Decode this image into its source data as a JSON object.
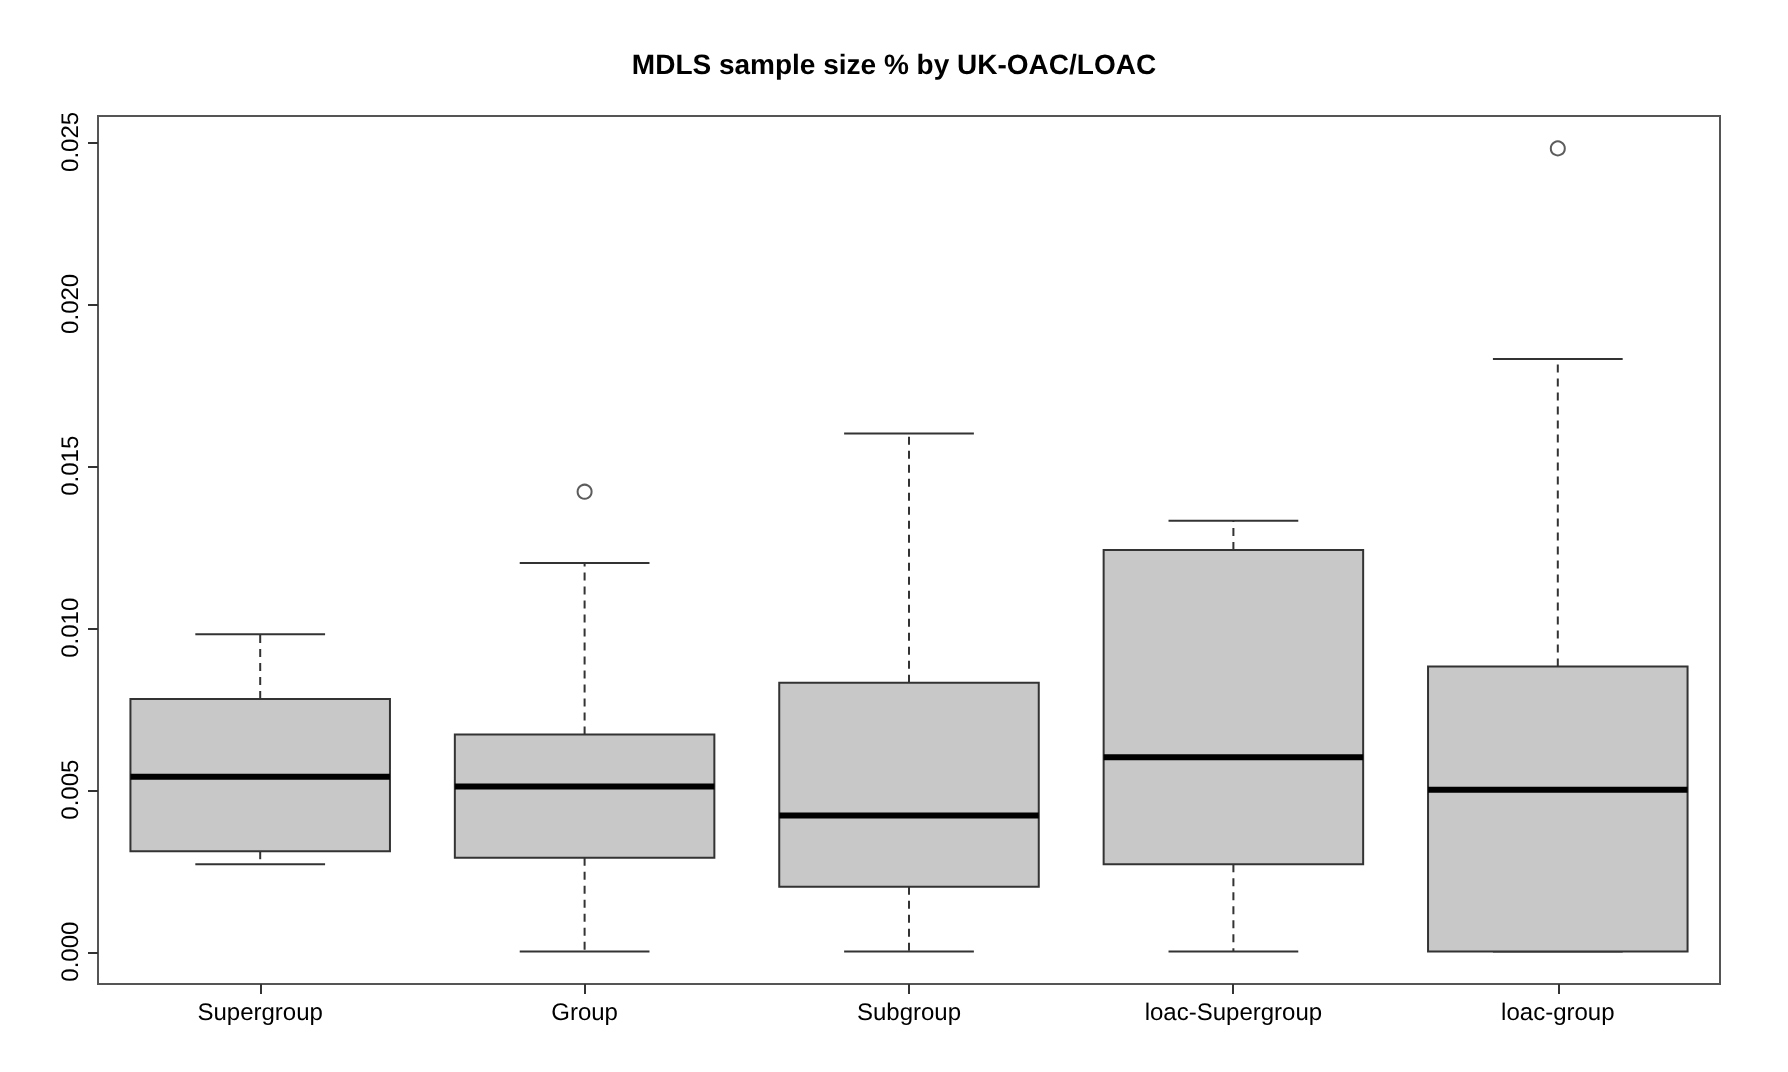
{
  "chart_data": {
    "type": "box",
    "title": "MDLS sample size % by UK-OAC/LOAC",
    "categories": [
      "Supergroup",
      "Group",
      "Subgroup",
      "loac-Supergroup",
      "loac-group"
    ],
    "color": "#c8c8c8",
    "boxes": [
      {
        "low": 0.0027,
        "q1": 0.0031,
        "median": 0.0054,
        "q3": 0.0078,
        "high": 0.0098
      },
      {
        "low": 0,
        "q1": 0.0029,
        "median": 0.0051,
        "q3": 0.0067,
        "high": 0.012,
        "outliers": [
          0.0142
        ]
      },
      {
        "low": 0,
        "q1": 0.002,
        "median": 0.0042,
        "q3": 0.0083,
        "high": 0.016
      },
      {
        "low": 0,
        "q1": 0.0027,
        "median": 0.006,
        "q3": 0.0124,
        "high": 0.0133
      },
      {
        "low": 0,
        "q1": 0,
        "median": 0.005,
        "q3": 0.0088,
        "high": 0.0183,
        "outliers": [
          0.0248
        ]
      }
    ],
    "ylim": [
      -0.001,
      0.0258
    ],
    "yticks": [
      {
        "value": 0,
        "label": "0.000"
      },
      0.005,
      {
        "value": 0.01,
        "label": "0.010"
      },
      0.015,
      {
        "value": 0.02,
        "label": "0.020"
      },
      0.025
    ],
    "grid": false
  }
}
